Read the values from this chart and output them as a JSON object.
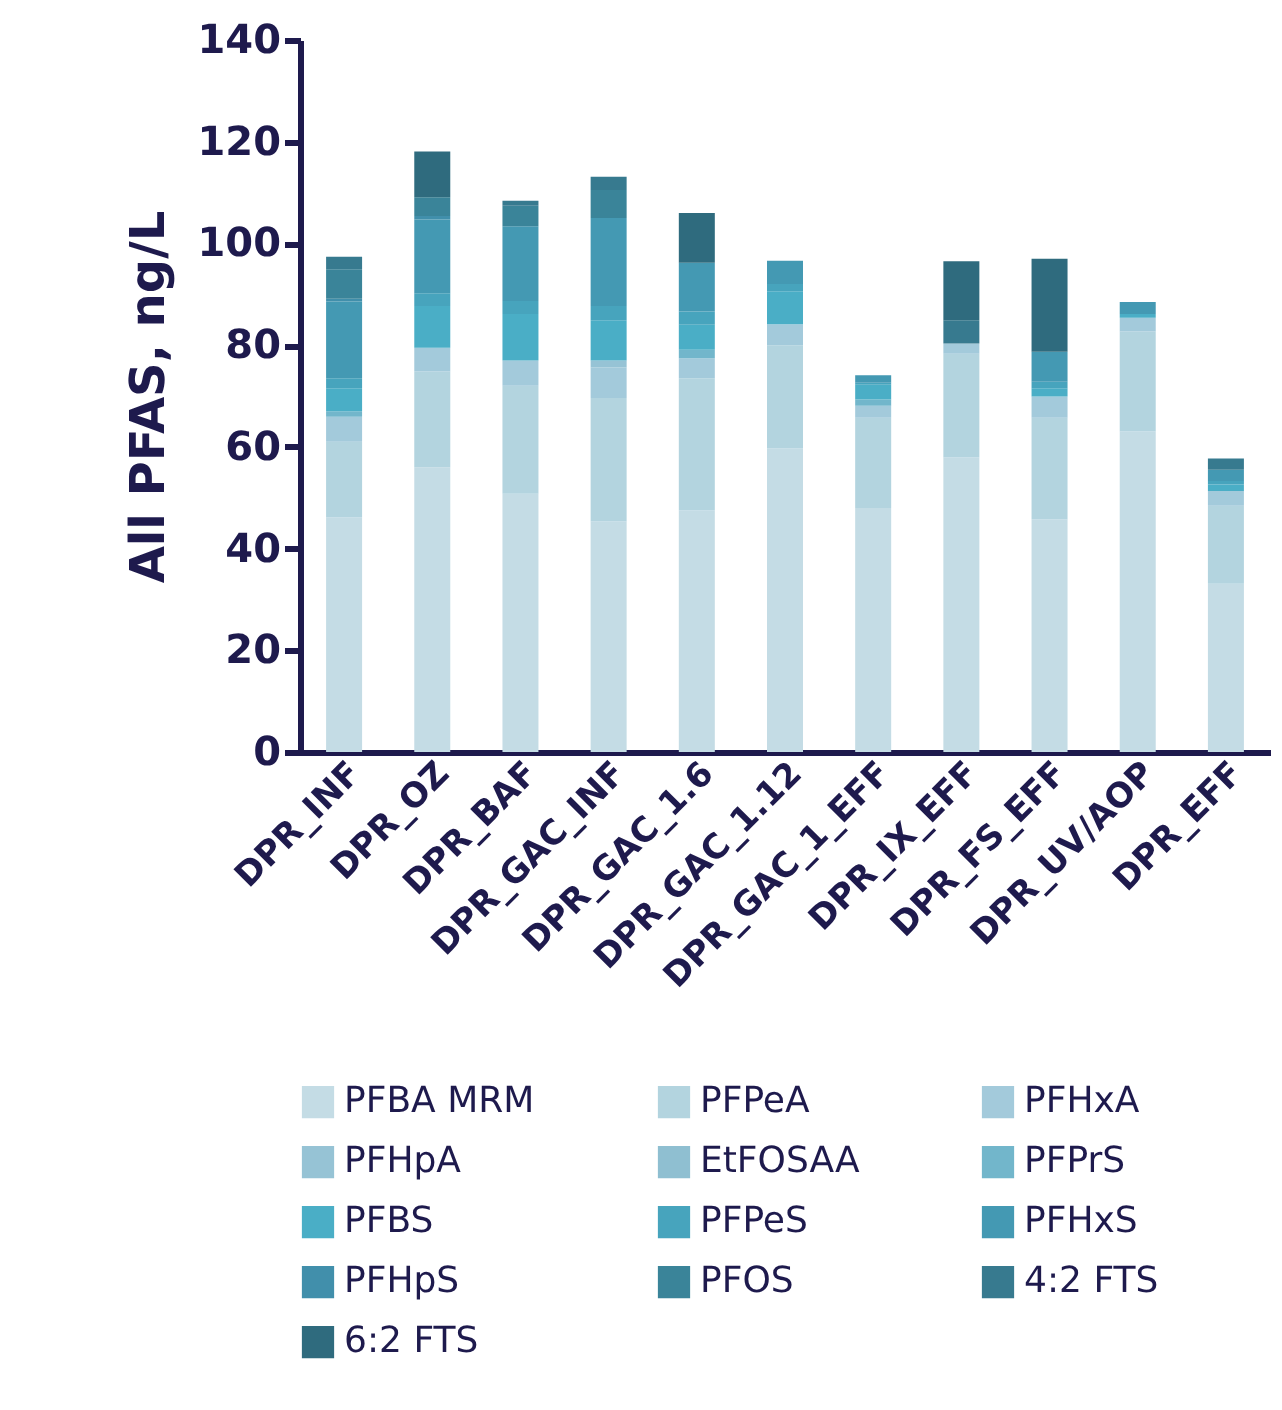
{
  "chart_data": {
    "type": "bar",
    "stacked": true,
    "ylabel": "All PFAS, ng/L",
    "ylim": [
      0,
      140
    ],
    "yticks": [
      0,
      20,
      40,
      60,
      80,
      100,
      120,
      140
    ],
    "grid": false,
    "legend": "bottom",
    "categories": [
      "DPR_INF",
      "DPR_OZ",
      "DPR_BAF",
      "DPR_GAC_INF",
      "DPR_GAC_1.6",
      "DPR_GAC_1.12",
      "DPR_GAC_1_EFF",
      "DPR_IX_EFF",
      "DPR_FS_EFF",
      "DPR_UV/AOP",
      "DPR_EFF"
    ],
    "series": [
      {
        "name": "PFBA MRM",
        "color": "#c4dce5",
        "values": [
          46.1,
          56.0,
          50.8,
          45.3,
          47.5,
          59.7,
          48.0,
          57.9,
          45.7,
          63.0,
          33.1
        ]
      },
      {
        "name": "PFPeA",
        "color": "#b3d4df",
        "values": [
          14.9,
          18.8,
          21.2,
          24.3,
          26.0,
          20.3,
          17.7,
          20.4,
          20.0,
          19.7,
          15.3
        ]
      },
      {
        "name": "PFHxA",
        "color": "#a3cadb",
        "values": [
          4.9,
          4.7,
          5.0,
          6.0,
          3.9,
          4.1,
          2.4,
          2.0,
          4.2,
          2.7,
          2.9
        ]
      },
      {
        "name": "PFHpA",
        "color": "#96c3d5",
        "values": [
          null,
          null,
          null,
          1.4,
          null,
          null,
          null,
          null,
          null,
          null,
          null
        ]
      },
      {
        "name": "EtFOSAA",
        "color": "#8fbfd1",
        "values": [
          null,
          null,
          null,
          null,
          null,
          null,
          null,
          null,
          null,
          null,
          null
        ]
      },
      {
        "name": "PFPrS",
        "color": "#72b6cb",
        "values": [
          1.1,
          null,
          null,
          null,
          1.7,
          null,
          1.2,
          null,
          null,
          null,
          null
        ]
      },
      {
        "name": "PFBS",
        "color": "#4aaec6",
        "values": [
          4.5,
          8.2,
          9.1,
          7.9,
          4.9,
          6.5,
          2.9,
          null,
          1.6,
          0.7,
          1.3
        ]
      },
      {
        "name": "PFPeS",
        "color": "#47a4bd",
        "values": [
          2.0,
          2.5,
          2.6,
          2.8,
          2.6,
          1.4,
          0.4,
          null,
          1.3,
          null,
          0.7
        ]
      },
      {
        "name": "PFHxS",
        "color": "#4499b3",
        "values": [
          15.1,
          14.5,
          14.7,
          17.3,
          9.6,
          4.6,
          1.5,
          null,
          5.9,
          2.4,
          2.2
        ]
      },
      {
        "name": "PFHpS",
        "color": "#418fab",
        "values": [
          0.5,
          0.7,
          null,
          null,
          null,
          null,
          null,
          null,
          null,
          null,
          null
        ]
      },
      {
        "name": "PFOS",
        "color": "#3a8499",
        "values": [
          5.8,
          3.7,
          4.0,
          5.5,
          null,
          null,
          null,
          null,
          null,
          null,
          null
        ]
      },
      {
        "name": "4:2 FTS",
        "color": "#377a8f",
        "values": [
          2.5,
          null,
          1.0,
          2.6,
          null,
          null,
          null,
          4.6,
          null,
          null,
          2.2
        ]
      },
      {
        "name": "6:2 FTS",
        "color": "#2f6b7e",
        "values": [
          null,
          9.0,
          null,
          null,
          9.8,
          null,
          null,
          11.6,
          18.3,
          null,
          null
        ]
      }
    ]
  }
}
